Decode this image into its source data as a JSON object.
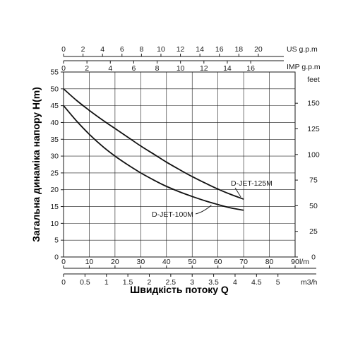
{
  "chart_data": {
    "type": "line",
    "xlabel": "Швидкість потоку Q",
    "ylabel": "Загальна динаміка напору H(m)",
    "x_primary": {
      "unit": "l/m",
      "ticks": [
        0,
        10,
        20,
        30,
        40,
        50,
        60,
        70,
        80,
        90
      ],
      "range": [
        0,
        90
      ]
    },
    "x_m3h": {
      "unit": "m3/h",
      "ticks": [
        "0",
        "0.5",
        "1",
        "1.5",
        "2",
        "2.5",
        "3",
        "3.5",
        "4",
        "4.5",
        "5"
      ]
    },
    "x_us_gpm": {
      "unit": "US g.p.m",
      "ticks": [
        0,
        2,
        4,
        6,
        8,
        10,
        12,
        14,
        16,
        18,
        20
      ]
    },
    "x_imp_gpm": {
      "unit": "IMP g.p.m",
      "ticks": [
        0,
        2,
        4,
        6,
        8,
        10,
        12,
        14,
        16
      ]
    },
    "y_primary": {
      "unit": "",
      "ticks": [
        0,
        5,
        10,
        15,
        20,
        25,
        30,
        35,
        40,
        45,
        50,
        55
      ],
      "range": [
        0,
        55
      ]
    },
    "y_feet": {
      "unit": "feet",
      "ticks": [
        0,
        25,
        50,
        75,
        100,
        125,
        150
      ]
    },
    "grid": true,
    "series": [
      {
        "name": "D-JET-125M",
        "x": [
          0,
          5,
          10,
          15,
          20,
          25,
          30,
          35,
          40,
          45,
          50,
          55,
          60,
          65,
          70
        ],
        "y": [
          50,
          46.6,
          43.6,
          40.8,
          38.2,
          35.6,
          33,
          30.6,
          28.2,
          26,
          23.9,
          22,
          20.2,
          18.6,
          17.2
        ]
      },
      {
        "name": "D-JET-100M",
        "x": [
          0,
          5,
          10,
          15,
          20,
          25,
          30,
          35,
          40,
          45,
          50,
          55,
          60,
          65,
          70
        ],
        "y": [
          45,
          40.5,
          36.5,
          33,
          30,
          27.4,
          25,
          22.9,
          21,
          19.4,
          18,
          16.7,
          15.6,
          14.6,
          13.9
        ]
      }
    ]
  }
}
